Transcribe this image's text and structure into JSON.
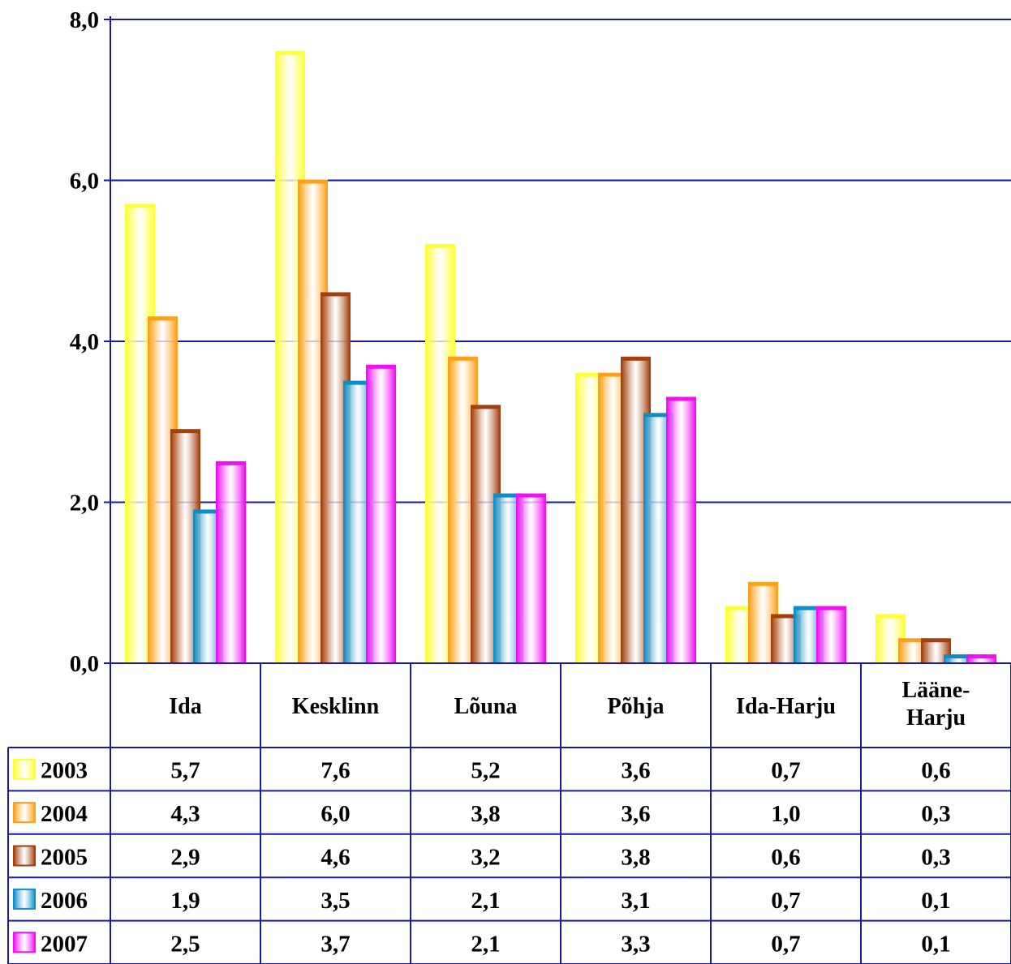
{
  "chart_data": {
    "type": "bar",
    "title": "",
    "xlabel": "",
    "ylabel": "",
    "ylim": [
      0,
      8
    ],
    "yticks": [
      "0,0",
      "2,0",
      "4,0",
      "6,0",
      "8,0"
    ],
    "grid": true,
    "legend": "data table below chart",
    "categories": [
      "Ida",
      "Kesklinn",
      "Lõuna",
      "Põhja",
      "Ida-Harju",
      "Lääne-Harju"
    ],
    "series": [
      {
        "name": "2003",
        "color": "#ffff33",
        "values": [
          5.7,
          7.6,
          5.2,
          3.6,
          0.7,
          0.6
        ],
        "labels": [
          "5,7",
          "7,6",
          "5,2",
          "3,6",
          "0,7",
          "0,6"
        ]
      },
      {
        "name": "2004",
        "color": "#ff9f1a",
        "values": [
          4.3,
          6.0,
          3.8,
          3.6,
          1.0,
          0.3
        ],
        "labels": [
          "4,3",
          "6,0",
          "3,8",
          "3,6",
          "1,0",
          "0,3"
        ]
      },
      {
        "name": "2005",
        "color": "#a4400f",
        "values": [
          2.9,
          4.6,
          3.2,
          3.8,
          0.6,
          0.3
        ],
        "labels": [
          "2,9",
          "4,6",
          "3,2",
          "3,8",
          "0,6",
          "0,3"
        ]
      },
      {
        "name": "2006",
        "color": "#0d8ec9",
        "values": [
          1.9,
          3.5,
          2.1,
          3.1,
          0.7,
          0.1
        ],
        "labels": [
          "1,9",
          "3,5",
          "2,1",
          "3,1",
          "0,7",
          "0,1"
        ]
      },
      {
        "name": "2007",
        "color": "#f20ff2",
        "values": [
          2.5,
          3.7,
          2.1,
          3.3,
          0.7,
          0.1
        ],
        "labels": [
          "2,5",
          "3,7",
          "2,1",
          "3,3",
          "0,7",
          "0,1"
        ]
      }
    ]
  }
}
